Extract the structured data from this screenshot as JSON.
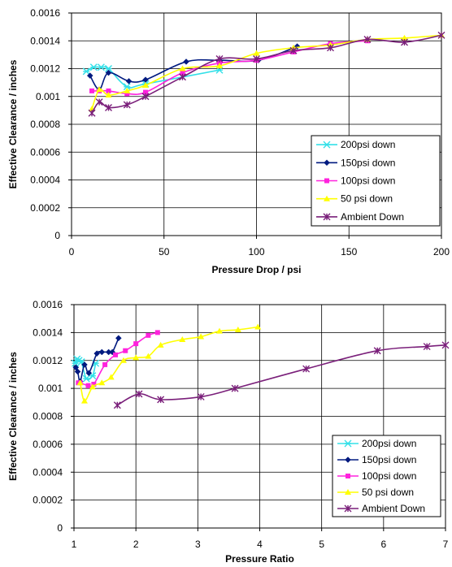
{
  "chart_data": [
    {
      "type": "line",
      "xlabel": "Pressure Drop / psi",
      "ylabel": "Effective Clearance / inches",
      "xlim": [
        0,
        200
      ],
      "ylim": [
        0,
        0.0016
      ],
      "xticks": [
        0,
        50,
        100,
        150,
        200
      ],
      "yticks": [
        "0",
        "0.0002",
        "0.0004",
        "0.0006",
        "0.0008",
        "0.001",
        "0.0012",
        "0.0014",
        "0.0016"
      ],
      "legend_position": "bottom-right",
      "grid": true,
      "series": [
        {
          "name": "200psi down",
          "color": "#33e0e8",
          "marker": "asterisk",
          "x": [
            8,
            12,
            16,
            20,
            30,
            40,
            80
          ],
          "y": [
            0.00118,
            0.00121,
            0.00121,
            0.0012,
            0.00107,
            0.00109,
            0.00119
          ]
        },
        {
          "name": "150psi down",
          "color": "#001a80",
          "marker": "diamond",
          "x": [
            10,
            15,
            20,
            31,
            40,
            62,
            80,
            101,
            122
          ],
          "y": [
            0.00115,
            0.00105,
            0.00117,
            0.00111,
            0.00112,
            0.00125,
            0.00126,
            0.00126,
            0.00136
          ]
        },
        {
          "name": "100psi down",
          "color": "#ff22dd",
          "marker": "square",
          "x": [
            11,
            15,
            20,
            30,
            40,
            60,
            80,
            100,
            120,
            140,
            160
          ],
          "y": [
            0.00104,
            0.00104,
            0.00104,
            0.00102,
            0.00103,
            0.00117,
            0.00124,
            0.00126,
            0.00132,
            0.00138,
            0.0014
          ]
        },
        {
          "name": "50 psi down",
          "color": "#ffff00",
          "marker": "triangle",
          "x": [
            11,
            15,
            20,
            30,
            40,
            60,
            80,
            100,
            120,
            140,
            160,
            180,
            200
          ],
          "y": [
            0.00091,
            0.00105,
            0.00101,
            0.00104,
            0.00108,
            0.0012,
            0.00122,
            0.00131,
            0.00135,
            0.00137,
            0.00141,
            0.00142,
            0.00144
          ]
        },
        {
          "name": "Ambient Down",
          "color": "#7a1f7a",
          "marker": "star",
          "x": [
            11,
            15,
            20,
            30,
            40,
            60,
            80,
            100,
            120,
            140,
            160,
            180,
            200
          ],
          "y": [
            0.00088,
            0.00096,
            0.00092,
            0.00094,
            0.001,
            0.00114,
            0.00127,
            0.00127,
            0.00133,
            0.00135,
            0.00141,
            0.00139,
            0.00144
          ]
        }
      ]
    },
    {
      "type": "line",
      "xlabel": "Pressure Ratio",
      "ylabel": "Effective Clearance / inches",
      "xlim": [
        1,
        7
      ],
      "ylim": [
        0,
        0.0016
      ],
      "xticks": [
        1,
        2,
        3,
        4,
        5,
        6,
        7
      ],
      "yticks": [
        "0",
        "0.0002",
        "0.0004",
        "0.0006",
        "0.0008",
        "0.001",
        "0.0012",
        "0.0014",
        "0.0016"
      ],
      "legend_position": "bottom-right",
      "grid": true,
      "series": [
        {
          "name": "200psi down",
          "color": "#33e0e8",
          "marker": "asterisk",
          "x": [
            1.02,
            1.05,
            1.08,
            1.12,
            1.2,
            1.3,
            1.35
          ],
          "y": [
            0.00118,
            0.00121,
            0.0012,
            0.00119,
            0.00107,
            0.00109,
            0.00118
          ]
        },
        {
          "name": "150psi down",
          "color": "#001a80",
          "marker": "diamond",
          "x": [
            1.03,
            1.06,
            1.1,
            1.17,
            1.24,
            1.37,
            1.45,
            1.56,
            1.62,
            1.72
          ],
          "y": [
            0.00115,
            0.00112,
            0.00105,
            0.00117,
            0.00111,
            0.00125,
            0.00126,
            0.00126,
            0.00126,
            0.00136
          ]
        },
        {
          "name": "100psi down",
          "color": "#ff22dd",
          "marker": "square",
          "x": [
            1.07,
            1.1,
            1.23,
            1.32,
            1.5,
            1.67,
            1.83,
            2.0,
            2.2,
            2.35
          ],
          "y": [
            0.00104,
            0.00104,
            0.00102,
            0.00103,
            0.00117,
            0.00124,
            0.00127,
            0.00132,
            0.00138,
            0.0014
          ]
        },
        {
          "name": "50 psi down",
          "color": "#ffff00",
          "marker": "triangle",
          "x": [
            1.1,
            1.17,
            1.3,
            1.45,
            1.6,
            1.8,
            2.0,
            2.2,
            2.4,
            2.75,
            3.05,
            3.35,
            3.65,
            3.97
          ],
          "y": [
            0.00104,
            0.00091,
            0.00101,
            0.00104,
            0.00108,
            0.0012,
            0.00122,
            0.00123,
            0.00131,
            0.00135,
            0.00137,
            0.00141,
            0.00142,
            0.00144
          ]
        },
        {
          "name": "Ambient Down",
          "color": "#7a1f7a",
          "marker": "star",
          "x": [
            1.7,
            2.05,
            2.4,
            3.05,
            3.6,
            4.75,
            5.9,
            6.7,
            7.0
          ],
          "y": [
            0.00088,
            0.00096,
            0.00092,
            0.00094,
            0.001,
            0.00114,
            0.00127,
            0.0013,
            0.00131
          ]
        }
      ]
    }
  ]
}
